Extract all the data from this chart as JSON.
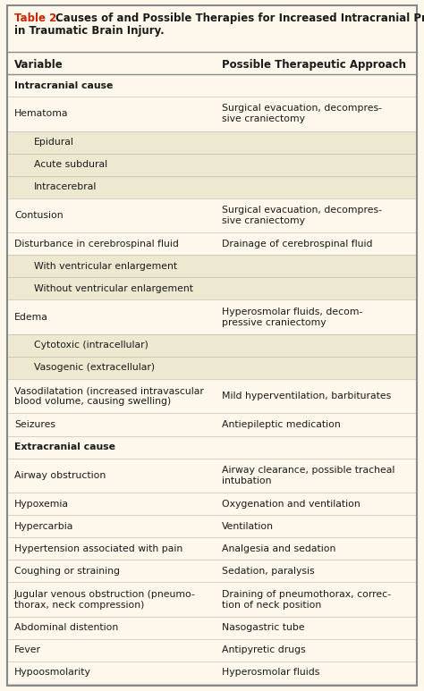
{
  "title_red": "Table 2.",
  "title_black": " Causes of and Possible Therapies for Increased Intracranial Pressure\nin Traumatic Brain Injury.",
  "bg_color": "#fdf8eb",
  "border_color": "#888888",
  "header_col1": "Variable",
  "header_col2": "Possible Therapeutic Approach",
  "rows": [
    {
      "col1": "Intracranial cause",
      "col2": "",
      "bold": true,
      "indent": 0,
      "shaded": false,
      "lines1": 1,
      "lines2": 0
    },
    {
      "col1": "Hematoma",
      "col2": "Surgical evacuation, decompres-\nsive craniectomy",
      "bold": false,
      "indent": 0,
      "shaded": false,
      "lines1": 1,
      "lines2": 2
    },
    {
      "col1": "Epidural",
      "col2": "",
      "bold": false,
      "indent": 1,
      "shaded": true,
      "lines1": 1,
      "lines2": 0
    },
    {
      "col1": "Acute subdural",
      "col2": "",
      "bold": false,
      "indent": 1,
      "shaded": true,
      "lines1": 1,
      "lines2": 0
    },
    {
      "col1": "Intracerebral",
      "col2": "",
      "bold": false,
      "indent": 1,
      "shaded": true,
      "lines1": 1,
      "lines2": 0
    },
    {
      "col1": "Contusion",
      "col2": "Surgical evacuation, decompres-\nsive craniectomy",
      "bold": false,
      "indent": 0,
      "shaded": false,
      "lines1": 1,
      "lines2": 2
    },
    {
      "col1": "Disturbance in cerebrospinal fluid",
      "col2": "Drainage of cerebrospinal fluid",
      "bold": false,
      "indent": 0,
      "shaded": false,
      "lines1": 1,
      "lines2": 1
    },
    {
      "col1": "With ventricular enlargement",
      "col2": "",
      "bold": false,
      "indent": 1,
      "shaded": true,
      "lines1": 1,
      "lines2": 0
    },
    {
      "col1": "Without ventricular enlargement",
      "col2": "",
      "bold": false,
      "indent": 1,
      "shaded": true,
      "lines1": 1,
      "lines2": 0
    },
    {
      "col1": "Edema",
      "col2": "Hyperosmolar fluids, decom-\npressive craniectomy",
      "bold": false,
      "indent": 0,
      "shaded": false,
      "lines1": 1,
      "lines2": 2
    },
    {
      "col1": "Cytotoxic (intracellular)",
      "col2": "",
      "bold": false,
      "indent": 1,
      "shaded": true,
      "lines1": 1,
      "lines2": 0
    },
    {
      "col1": "Vasogenic (extracellular)",
      "col2": "",
      "bold": false,
      "indent": 1,
      "shaded": true,
      "lines1": 1,
      "lines2": 0
    },
    {
      "col1": "Vasodilatation (increased intravascular\nblood volume, causing swelling)",
      "col2": "Mild hyperventilation, barbiturates",
      "bold": false,
      "indent": 0,
      "shaded": false,
      "lines1": 2,
      "lines2": 1
    },
    {
      "col1": "Seizures",
      "col2": "Antiepileptic medication",
      "bold": false,
      "indent": 0,
      "shaded": false,
      "lines1": 1,
      "lines2": 1
    },
    {
      "col1": "Extracranial cause",
      "col2": "",
      "bold": true,
      "indent": 0,
      "shaded": false,
      "lines1": 1,
      "lines2": 0
    },
    {
      "col1": "Airway obstruction",
      "col2": "Airway clearance, possible tracheal\nintubation",
      "bold": false,
      "indent": 0,
      "shaded": false,
      "lines1": 1,
      "lines2": 2
    },
    {
      "col1": "Hypoxemia",
      "col2": "Oxygenation and ventilation",
      "bold": false,
      "indent": 0,
      "shaded": false,
      "lines1": 1,
      "lines2": 1
    },
    {
      "col1": "Hypercarbia",
      "col2": "Ventilation",
      "bold": false,
      "indent": 0,
      "shaded": false,
      "lines1": 1,
      "lines2": 1
    },
    {
      "col1": "Hypertension associated with pain",
      "col2": "Analgesia and sedation",
      "bold": false,
      "indent": 0,
      "shaded": false,
      "lines1": 1,
      "lines2": 1
    },
    {
      "col1": "Coughing or straining",
      "col2": "Sedation, paralysis",
      "bold": false,
      "indent": 0,
      "shaded": false,
      "lines1": 1,
      "lines2": 1
    },
    {
      "col1": "Jugular venous obstruction (pneumo-\nthorax, neck compression)",
      "col2": "Draining of pneumothorax, correc-\ntion of neck position",
      "bold": false,
      "indent": 0,
      "shaded": false,
      "lines1": 2,
      "lines2": 2
    },
    {
      "col1": "Abdominal distention",
      "col2": "Nasogastric tube",
      "bold": false,
      "indent": 0,
      "shaded": false,
      "lines1": 1,
      "lines2": 1
    },
    {
      "col1": "Fever",
      "col2": "Antipyretic drugs",
      "bold": false,
      "indent": 0,
      "shaded": false,
      "lines1": 1,
      "lines2": 1
    },
    {
      "col1": "Hypoosmolarity",
      "col2": "Hyperosmolar fluids",
      "bold": false,
      "indent": 0,
      "shaded": false,
      "lines1": 1,
      "lines2": 1
    }
  ],
  "text_color": "#1a1a1a",
  "shaded_color": "#ede8d0",
  "red_color": "#cc2200",
  "font_size": 7.8,
  "title_font_size": 8.5,
  "header_font_size": 8.5
}
